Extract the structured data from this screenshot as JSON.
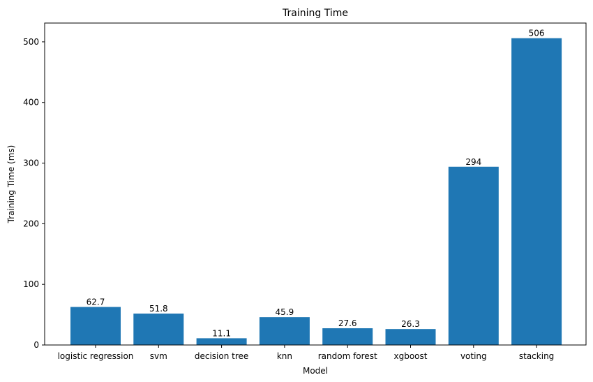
{
  "chart_data": {
    "type": "bar",
    "title": "Training Time",
    "xlabel": "Model",
    "ylabel": "Training Time (ms)",
    "categories": [
      "logistic regression",
      "svm",
      "decision tree",
      "knn",
      "random forest",
      "xgboost",
      "voting",
      "stacking"
    ],
    "values": [
      62.7,
      51.8,
      11.1,
      45.9,
      27.6,
      26.3,
      294,
      506
    ],
    "data_labels": [
      "62.7",
      "51.8",
      "11.1",
      "45.9",
      "27.6",
      "26.3",
      "294",
      "506"
    ],
    "ylim": [
      0,
      531
    ],
    "yticks": [
      0,
      100,
      200,
      300,
      400,
      500
    ],
    "bar_color": "#1f77b4",
    "grid": false,
    "legend": "none"
  }
}
